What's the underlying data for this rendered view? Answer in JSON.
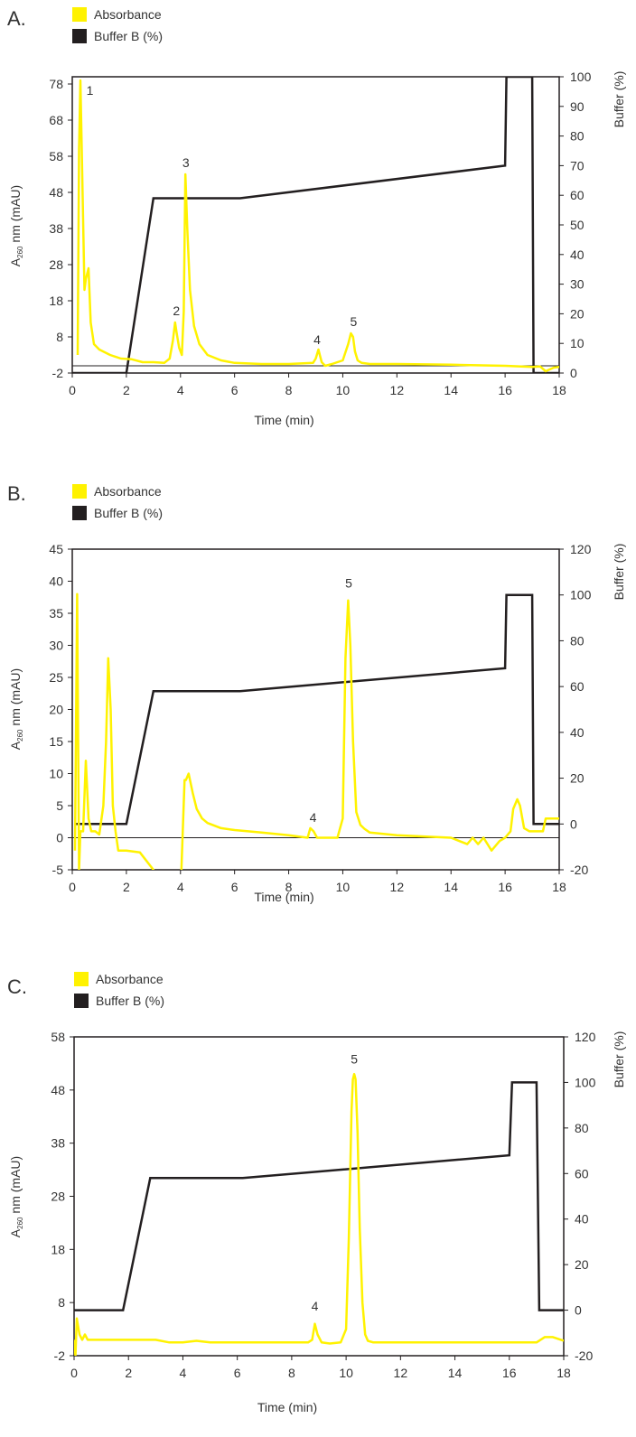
{
  "colors": {
    "absorbance": "#fff200",
    "buffer": "#231f20"
  },
  "legend": {
    "absorbance": "Absorbance",
    "buffer": "Buffer B (%)"
  },
  "chart_data": [
    {
      "panel_label": "A.",
      "type": "line",
      "xlabel": "Time (min)",
      "ylabel_main": "A",
      "ylabel_sub": "260",
      "ylabel_rest": " nm (mAU)",
      "y2label": "Buffer (%)",
      "xlim": [
        0,
        18
      ],
      "ylim": [
        -2,
        80
      ],
      "y2lim": [
        0,
        100
      ],
      "xticks": [
        0,
        2,
        4,
        6,
        8,
        10,
        12,
        14,
        16,
        18
      ],
      "yticks": [
        -2,
        8,
        18,
        28,
        38,
        48,
        58,
        68,
        78
      ],
      "y2ticks": [
        0,
        10,
        20,
        30,
        40,
        50,
        60,
        70,
        80,
        90,
        100
      ],
      "series": [
        {
          "name": "Absorbance",
          "x": [
            0.2,
            0.25,
            0.3,
            0.38,
            0.45,
            0.5,
            0.6,
            0.68,
            0.8,
            1.0,
            1.4,
            1.8,
            2.2,
            2.6,
            3.0,
            3.4,
            3.6,
            3.72,
            3.8,
            3.86,
            3.95,
            4.05,
            4.12,
            4.18,
            4.25,
            4.35,
            4.5,
            4.7,
            5.0,
            5.5,
            6.0,
            7.0,
            8.0,
            8.9,
            9.0,
            9.1,
            9.15,
            9.22,
            9.35,
            9.6,
            10.0,
            10.2,
            10.3,
            10.38,
            10.45,
            10.55,
            10.7,
            11.0,
            12.0,
            14.0,
            16.0,
            17.0,
            17.3,
            17.5,
            17.8,
            18.0
          ],
          "y": [
            3,
            60,
            79,
            48,
            21,
            24,
            27,
            12,
            6,
            4.5,
            3,
            2,
            1.8,
            1,
            1,
            0.8,
            2,
            7,
            12,
            9,
            5,
            3,
            15,
            53,
            38,
            21,
            11,
            6,
            3,
            1.5,
            0.8,
            0.5,
            0.5,
            0.8,
            2,
            4.5,
            3,
            1,
            0,
            0.5,
            1.5,
            6,
            9,
            8,
            4,
            1.5,
            0.8,
            0.5,
            0.5,
            0.3,
            0,
            -0.3,
            -0.2,
            -1.5,
            -0.5,
            -0.3
          ]
        },
        {
          "name": "Buffer B (%)",
          "x": [
            0,
            2,
            3,
            6.2,
            16,
            16.05,
            17,
            17.05,
            18
          ],
          "y": [
            0,
            0,
            59,
            59,
            70,
            100,
            100,
            0,
            0
          ]
        }
      ],
      "baseline_y": 0,
      "annotations": [
        {
          "text": "1",
          "x": 0.65,
          "y": 75
        },
        {
          "text": "2",
          "x": 3.85,
          "y": 14
        },
        {
          "text": "3",
          "x": 4.2,
          "y": 55
        },
        {
          "text": "4",
          "x": 9.05,
          "y": 6
        },
        {
          "text": "5",
          "x": 10.4,
          "y": 11
        }
      ]
    },
    {
      "panel_label": "B.",
      "type": "line",
      "xlabel": "Time (min)",
      "ylabel_main": "A",
      "ylabel_sub": "260",
      "ylabel_rest": " nm (mAU)",
      "y2label": "Buffer (%)",
      "xlim": [
        0,
        18
      ],
      "ylim": [
        -5,
        45
      ],
      "y2lim": [
        -20,
        120
      ],
      "xticks": [
        0,
        2,
        4,
        6,
        8,
        10,
        12,
        14,
        16,
        18
      ],
      "yticks": [
        -5,
        0,
        5,
        10,
        15,
        20,
        25,
        30,
        35,
        40,
        45
      ],
      "y2ticks": [
        -20,
        0,
        20,
        40,
        60,
        80,
        100,
        120
      ],
      "series": [
        {
          "name": "Absorbance",
          "x": [
            0.1,
            0.18,
            0.25,
            0.3,
            0.4,
            0.5,
            0.6,
            0.7,
            0.85,
            1.0,
            1.15,
            1.25,
            1.33,
            1.42,
            1.5,
            1.6,
            1.7,
            2.0,
            2.5,
            3.0,
            3.05,
            4.0,
            4.15,
            4.2,
            4.3,
            4.45,
            4.6,
            4.8,
            5.0,
            5.5,
            6.0,
            7.0,
            8.0,
            8.7,
            8.8,
            8.92,
            9.05,
            9.3,
            9.8,
            10.0,
            10.1,
            10.2,
            10.28,
            10.38,
            10.5,
            10.65,
            10.8,
            11.0,
            12.0,
            13.0,
            14.0,
            14.6,
            14.8,
            15.0,
            15.2,
            15.5,
            15.8,
            16.0,
            16.2,
            16.3,
            16.45,
            16.55,
            16.7,
            16.9,
            17.0,
            17.4,
            17.5,
            17.9,
            18.0
          ],
          "y": [
            -2,
            38,
            -5,
            1,
            1,
            12,
            3,
            1,
            1,
            0.5,
            5,
            15,
            28,
            20,
            5,
            1,
            -2,
            -2,
            -2.3,
            -5,
            -9,
            -9,
            9,
            9,
            10,
            7,
            4.5,
            3,
            2.3,
            1.5,
            1.2,
            0.8,
            0.4,
            0,
            1.5,
            1,
            0,
            0,
            0,
            3,
            28,
            37,
            30,
            15,
            4,
            2,
            1.4,
            0.8,
            0.4,
            0.2,
            0,
            -1,
            0,
            -1,
            0,
            -2,
            -0.5,
            0,
            1,
            4.5,
            6,
            5,
            1.5,
            1,
            1,
            1,
            3,
            3,
            3
          ]
        },
        {
          "name": "Buffer B (%)",
          "x": [
            0.1,
            2,
            3,
            6.2,
            16,
            16.05,
            17,
            17.05,
            17.4,
            17.5,
            18
          ],
          "y": [
            0,
            0,
            58,
            58,
            68,
            100,
            100,
            0,
            0,
            0,
            0
          ]
        }
      ],
      "baseline_y": 0,
      "annotations": [
        {
          "text": "4",
          "x": 8.9,
          "y": 2.5
        },
        {
          "text": "5",
          "x": 10.22,
          "y": 39
        }
      ]
    },
    {
      "panel_label": "C.",
      "type": "line",
      "xlabel": "Time (min)",
      "ylabel_main": "A",
      "ylabel_sub": "260",
      "ylabel_rest": " nm (mAU)",
      "y2label": "Buffer (%)",
      "xlim": [
        0,
        18
      ],
      "ylim": [
        -2,
        58
      ],
      "y2lim": [
        -20,
        120
      ],
      "xticks": [
        0,
        2,
        4,
        6,
        8,
        10,
        12,
        14,
        16,
        18
      ],
      "yticks": [
        -2,
        8,
        18,
        28,
        38,
        48,
        58
      ],
      "y2ticks": [
        -20,
        0,
        20,
        40,
        60,
        80,
        100,
        120
      ],
      "series": [
        {
          "name": "Absorbance",
          "x": [
            0,
            0.05,
            0.1,
            0.2,
            0.3,
            0.4,
            0.5,
            0.7,
            1.0,
            2.0,
            3.0,
            3.5,
            4.0,
            4.5,
            5.0,
            6.0,
            7.0,
            8.0,
            8.6,
            8.75,
            8.85,
            8.95,
            9.1,
            9.4,
            9.8,
            10.0,
            10.1,
            10.2,
            10.25,
            10.3,
            10.35,
            10.42,
            10.5,
            10.6,
            10.7,
            10.8,
            11.0,
            12.0,
            14.0,
            16.0,
            17.0,
            17.3,
            17.6,
            18.0
          ],
          "y": [
            1,
            -2,
            5,
            2,
            1,
            2,
            1,
            1,
            1,
            1,
            1,
            0.5,
            0.5,
            0.8,
            0.5,
            0.5,
            0.5,
            0.5,
            0.5,
            1,
            4,
            2,
            0.5,
            0.3,
            0.5,
            3,
            20,
            44,
            50,
            51,
            50,
            40,
            22,
            8,
            2,
            0.8,
            0.5,
            0.5,
            0.5,
            0.5,
            0.5,
            1.5,
            1.5,
            0.8
          ]
        },
        {
          "name": "Buffer B (%)",
          "x": [
            0,
            1.8,
            2.8,
            6.2,
            16,
            16.1,
            17,
            17.1,
            18
          ],
          "y": [
            0,
            0,
            58,
            58,
            68,
            100,
            100,
            0,
            0
          ]
        }
      ],
      "baseline_y": null,
      "annotations": [
        {
          "text": "4",
          "x": 8.85,
          "y": 6.5
        },
        {
          "text": "5",
          "x": 10.3,
          "y": 53
        }
      ]
    }
  ]
}
